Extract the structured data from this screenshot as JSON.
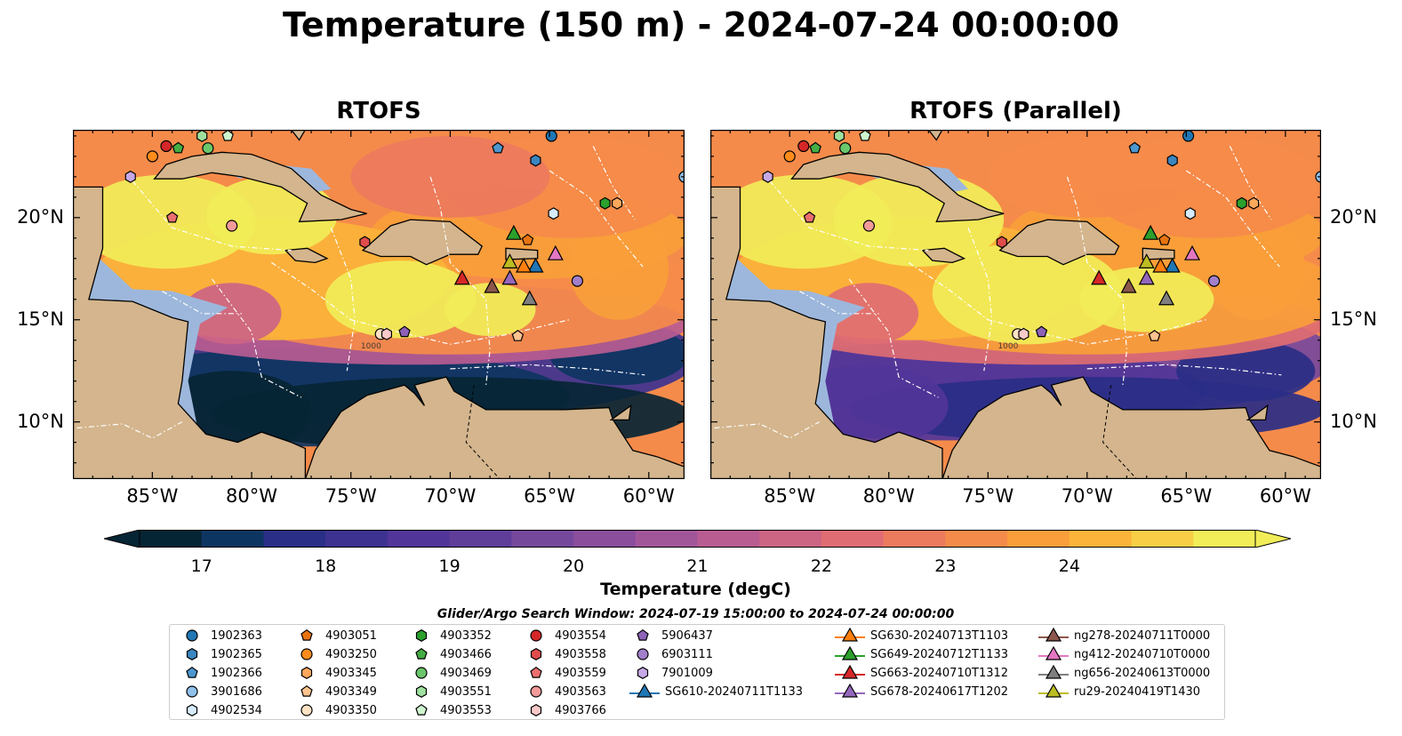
{
  "title": "Temperature (150 m) - 2024-07-24 00:00:00",
  "panels": [
    {
      "title": "RTOFS"
    },
    {
      "title": "RTOFS (Parallel)"
    }
  ],
  "axes": {
    "x_ticks": [
      "85°W",
      "80°W",
      "75°W",
      "70°W",
      "65°W",
      "60°W"
    ],
    "y_ticks": [
      "20°N",
      "15°N",
      "10°N"
    ]
  },
  "colorbar": {
    "label": "Temperature (degC)",
    "ticks": [
      "17",
      "18",
      "19",
      "20",
      "21",
      "22",
      "23",
      "24"
    ],
    "colors": [
      "#062534",
      "#0d3561",
      "#2a2e86",
      "#3d3290",
      "#513598",
      "#5f3e9a",
      "#76489c",
      "#8a4e9c",
      "#a2569a",
      "#b95c91",
      "#cc6484",
      "#df6c72",
      "#ec7a5d",
      "#f58b4a",
      "#f99e3a",
      "#fbb33a",
      "#f7ce46",
      "#f1ed58"
    ]
  },
  "contour_label": "1000",
  "legend": {
    "title": "Glider/Argo Search Window: 2024-07-19 15:00:00 to 2024-07-24 00:00:00",
    "columns": [
      [
        {
          "label": "1902363",
          "marker": "circle",
          "color": "#1f77b4"
        },
        {
          "label": "1902365",
          "marker": "hexagon",
          "color": "#3a86c0"
        },
        {
          "label": "1902366",
          "marker": "pentagon",
          "color": "#4c97cd"
        },
        {
          "label": "3901686",
          "marker": "circle",
          "color": "#8fc1ea"
        },
        {
          "label": "4902534",
          "marker": "hexagon",
          "color": "#d6ebfb"
        }
      ],
      [
        {
          "label": "4903051",
          "marker": "pentagon",
          "color": "#e87410"
        },
        {
          "label": "4903250",
          "marker": "circle",
          "color": "#ff8c1a"
        },
        {
          "label": "4903345",
          "marker": "hexagon",
          "color": "#ffa85c"
        },
        {
          "label": "4903349",
          "marker": "pentagon",
          "color": "#ffc38f"
        },
        {
          "label": "4903350",
          "marker": "circle",
          "color": "#ffe2c4"
        }
      ],
      [
        {
          "label": "4903352",
          "marker": "hexagon",
          "color": "#2ca02c"
        },
        {
          "label": "4903466",
          "marker": "pentagon",
          "color": "#45ad45"
        },
        {
          "label": "4903469",
          "marker": "circle",
          "color": "#6bc76b"
        },
        {
          "label": "4903551",
          "marker": "hexagon",
          "color": "#9ee09e"
        },
        {
          "label": "4903553",
          "marker": "pentagon",
          "color": "#cff5cf"
        }
      ],
      [
        {
          "label": "4903554",
          "marker": "circle",
          "color": "#d62728"
        },
        {
          "label": "4903558",
          "marker": "hexagon",
          "color": "#e04c4c"
        },
        {
          "label": "4903559",
          "marker": "pentagon",
          "color": "#eb6f6f"
        },
        {
          "label": "4903563",
          "marker": "circle",
          "color": "#f29a9a"
        },
        {
          "label": "4903766",
          "marker": "hexagon",
          "color": "#f9c9c9"
        }
      ],
      [
        {
          "label": "5906437",
          "marker": "pentagon",
          "color": "#8d62b8"
        },
        {
          "label": "6903111",
          "marker": "circle",
          "color": "#a27fcb"
        },
        {
          "label": "7901009",
          "marker": "hexagon",
          "color": "#c6a8e6"
        },
        {
          "label": "SG610-20240711T1133",
          "marker": "triangle-line",
          "color": "#1f77b4"
        }
      ],
      [
        {
          "label": "SG630-20240713T1103",
          "marker": "triangle-line",
          "color": "#ff7f0e"
        },
        {
          "label": "SG649-20240712T1133",
          "marker": "triangle-line",
          "color": "#2ca02c"
        },
        {
          "label": "SG663-20240710T1312",
          "marker": "triangle-line",
          "color": "#d62728"
        },
        {
          "label": "SG678-20240617T1202",
          "marker": "triangle-line",
          "color": "#9467bd"
        }
      ],
      [
        {
          "label": "ng278-20240711T0000",
          "marker": "triangle-line",
          "color": "#8c564b"
        },
        {
          "label": "ng412-20240710T0000",
          "marker": "triangle-line",
          "color": "#e377c2"
        },
        {
          "label": "ng656-20240613T0000",
          "marker": "triangle-line",
          "color": "#7f7f7f"
        },
        {
          "label": "ru29-20240419T1430",
          "marker": "triangle-line",
          "color": "#bcbd22"
        }
      ]
    ]
  },
  "markers": [
    {
      "id": "1902363",
      "shape": "circle",
      "color": "#1f77b4",
      "lon": -64.9,
      "lat": 24.0
    },
    {
      "id": "1902365",
      "shape": "hexagon",
      "color": "#3a86c0",
      "lon": -65.7,
      "lat": 22.8
    },
    {
      "id": "1902366",
      "shape": "pentagon",
      "color": "#4c97cd",
      "lon": -67.6,
      "lat": 23.4
    },
    {
      "id": "3901686",
      "shape": "circle",
      "color": "#8fc1ea",
      "lon": -58.2,
      "lat": 22.0
    },
    {
      "id": "4902534",
      "shape": "hexagon",
      "color": "#d6ebfb",
      "lon": -64.8,
      "lat": 20.2
    },
    {
      "id": "4903051",
      "shape": "pentagon",
      "color": "#e87410",
      "lon": -66.1,
      "lat": 18.9
    },
    {
      "id": "4903250",
      "shape": "circle",
      "color": "#ff8c1a",
      "lon": -85.0,
      "lat": 23.0
    },
    {
      "id": "4903345",
      "shape": "hexagon",
      "color": "#ffa85c",
      "lon": -61.6,
      "lat": 20.7
    },
    {
      "id": "4903349",
      "shape": "pentagon",
      "color": "#ffc38f",
      "lon": -66.6,
      "lat": 14.2
    },
    {
      "id": "4903350",
      "shape": "circle",
      "color": "#ffe2c4",
      "lon": -73.5,
      "lat": 14.3
    },
    {
      "id": "4903352",
      "shape": "hexagon",
      "color": "#2ca02c",
      "lon": -62.2,
      "lat": 20.7
    },
    {
      "id": "4903466",
      "shape": "pentagon",
      "color": "#45ad45",
      "lon": -83.7,
      "lat": 23.4
    },
    {
      "id": "4903469",
      "shape": "circle",
      "color": "#6bc76b",
      "lon": -82.2,
      "lat": 23.4
    },
    {
      "id": "4903551",
      "shape": "hexagon",
      "color": "#9ee09e",
      "lon": -82.5,
      "lat": 24.0
    },
    {
      "id": "4903553",
      "shape": "pentagon",
      "color": "#cff5cf",
      "lon": -81.2,
      "lat": 24.0
    },
    {
      "id": "4903554",
      "shape": "circle",
      "color": "#d62728",
      "lon": -84.3,
      "lat": 23.5
    },
    {
      "id": "4903558",
      "shape": "hexagon",
      "color": "#e04c4c",
      "lon": -74.3,
      "lat": 18.8
    },
    {
      "id": "4903559",
      "shape": "pentagon",
      "color": "#eb6f6f",
      "lon": -84.0,
      "lat": 20.0
    },
    {
      "id": "4903563",
      "shape": "circle",
      "color": "#f29a9a",
      "lon": -81.0,
      "lat": 19.6
    },
    {
      "id": "4903766",
      "shape": "hexagon",
      "color": "#f9c9c9",
      "lon": -73.2,
      "lat": 14.3
    },
    {
      "id": "5906437",
      "shape": "pentagon",
      "color": "#8d62b8",
      "lon": -72.3,
      "lat": 14.4
    },
    {
      "id": "6903111",
      "shape": "circle",
      "color": "#a27fcb",
      "lon": -63.6,
      "lat": 16.9
    },
    {
      "id": "7901009",
      "shape": "hexagon",
      "color": "#c6a8e6",
      "lon": -86.1,
      "lat": 22.0
    },
    {
      "id": "SG610-20240711T1133",
      "shape": "triangle",
      "color": "#1f77b4",
      "lon": -65.7,
      "lat": 17.6
    },
    {
      "id": "SG630-20240713T1103",
      "shape": "triangle",
      "color": "#ff7f0e",
      "lon": -66.3,
      "lat": 17.6
    },
    {
      "id": "SG649-20240712T1133",
      "shape": "triangle",
      "color": "#2ca02c",
      "lon": -66.8,
      "lat": 19.2
    },
    {
      "id": "SG663-20240710T1312",
      "shape": "triangle",
      "color": "#d62728",
      "lon": -69.4,
      "lat": 17.0
    },
    {
      "id": "SG678-20240617T1202",
      "shape": "triangle",
      "color": "#9467bd",
      "lon": -67.0,
      "lat": 17.0
    },
    {
      "id": "ng278-20240711T0000",
      "shape": "triangle",
      "color": "#8c564b",
      "lon": -67.9,
      "lat": 16.6
    },
    {
      "id": "ng412-20240710T0000",
      "shape": "triangle",
      "color": "#e377c2",
      "lon": -64.7,
      "lat": 18.2
    },
    {
      "id": "ng656-20240613T0000",
      "shape": "triangle",
      "color": "#7f7f7f",
      "lon": -66.0,
      "lat": 16.0
    },
    {
      "id": "ru29-20240419T1430",
      "shape": "triangle",
      "color": "#bcbd22",
      "lon": -67.0,
      "lat": 17.8
    }
  ]
}
